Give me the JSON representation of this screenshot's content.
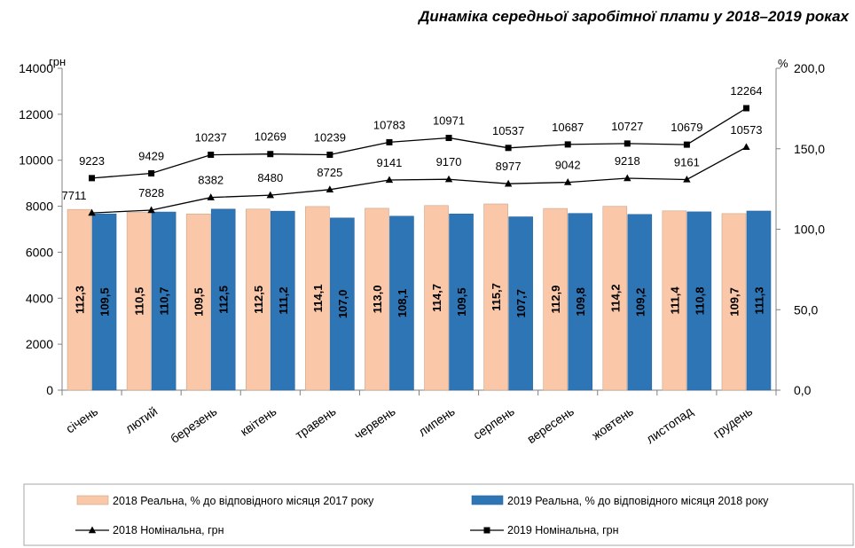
{
  "chart_data": {
    "type": "bar",
    "title": "Динаміка середньої заробітної плати у 2018–2019 роках",
    "left_axis": {
      "unit": "грн",
      "min": 0,
      "max": 14000,
      "ticks": [
        "0",
        "2000",
        "4000",
        "6000",
        "8000",
        "10000",
        "12000",
        "14000"
      ]
    },
    "right_axis": {
      "unit": "%",
      "min": 0,
      "max": 200,
      "ticks": [
        "0,0",
        "50,0",
        "100,0",
        "150,0",
        "200,0"
      ]
    },
    "categories": [
      "січень",
      "лютий",
      "березень",
      "квітень",
      "травень",
      "червень",
      "липень",
      "серпень",
      "вересень",
      "жовтень",
      "листопад",
      "грудень"
    ],
    "bar_series": [
      {
        "name": "2018 Реальна, % до відповідного місяця 2017 року",
        "color": "#FAC8A8",
        "axis": "right",
        "values": [
          112.3,
          110.5,
          109.5,
          112.5,
          114.1,
          113.0,
          114.7,
          115.7,
          112.9,
          114.2,
          111.4,
          109.7
        ],
        "labels": [
          "112,3",
          "110,5",
          "109,5",
          "112,5",
          "114,1",
          "113,0",
          "114,7",
          "115,7",
          "112,9",
          "114,2",
          "111,4",
          "109,7"
        ]
      },
      {
        "name": "2019 Реальна, % до відповідного місяця 2018 року",
        "color": "#2E75B6",
        "axis": "right",
        "values": [
          109.5,
          110.7,
          112.5,
          111.2,
          107.0,
          108.1,
          109.5,
          107.7,
          109.8,
          109.2,
          110.8,
          111.3
        ],
        "labels": [
          "109,5",
          "110,7",
          "112,5",
          "111,2",
          "107,0",
          "108,1",
          "109,5",
          "107,7",
          "109,8",
          "109,2",
          "110,8",
          "111,3"
        ]
      }
    ],
    "line_series": [
      {
        "name": "2018 Номінальна, грн",
        "marker": "triangle",
        "axis": "left",
        "values": [
          7711,
          7828,
          8382,
          8480,
          8725,
          9141,
          9170,
          8977,
          9042,
          9218,
          9161,
          10573
        ],
        "labels": [
          "7711",
          "7828",
          "8382",
          "8480",
          "8725",
          "9141",
          "9170",
          "8977",
          "9042",
          "9218",
          "9161",
          "10573"
        ]
      },
      {
        "name": "2019 Номінальна, грн",
        "marker": "square",
        "axis": "left",
        "values": [
          9223,
          9429,
          10237,
          10269,
          10239,
          10783,
          10971,
          10537,
          10687,
          10727,
          10679,
          12264
        ],
        "labels": [
          "9223",
          "9429",
          "10237",
          "10269",
          "10239",
          "10783",
          "10971",
          "10537",
          "10687",
          "10727",
          "10679",
          "12264"
        ]
      }
    ]
  }
}
